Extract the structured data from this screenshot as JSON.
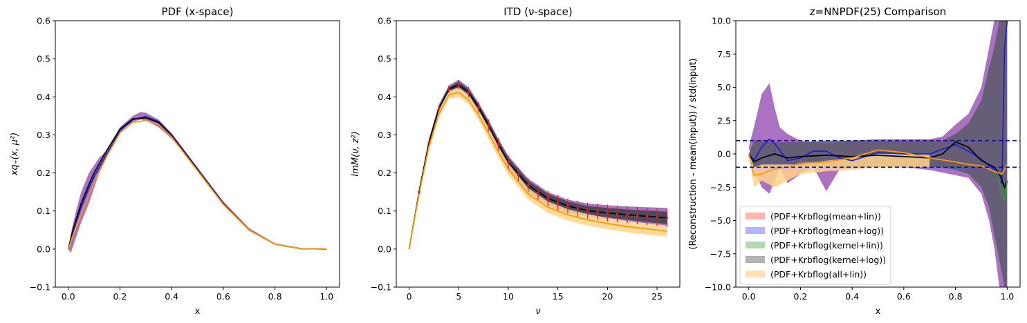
{
  "chart_data": [
    {
      "type": "line",
      "title": "PDF (x-space)",
      "xlabel": "x",
      "ylabel": "xq₊(x, μ²)",
      "xlim": [
        -0.05,
        1.05
      ],
      "ylim": [
        -0.1,
        0.6
      ],
      "xticks": [
        0.0,
        0.2,
        0.4,
        0.6,
        0.8,
        1.0
      ],
      "xtick_labels": [
        "0.0",
        "0.2",
        "0.4",
        "0.6",
        "0.8",
        "1.0"
      ],
      "yticks": [
        -0.1,
        0.0,
        0.1,
        0.2,
        0.3,
        0.4,
        0.5,
        0.6
      ],
      "ytick_labels": [
        "−0.1",
        "0.0",
        "0.1",
        "0.2",
        "0.3",
        "0.4",
        "0.5",
        "0.6"
      ],
      "colors": {
        "purple": "#9b59b6",
        "gray": "#3f3f4a",
        "blue": "#1f1fd6",
        "black": "#000000",
        "orange": "#ff9900",
        "lightorange": "#ffd38a"
      },
      "series": [
        {
          "color": "#9b59b6",
          "kind": "band",
          "x": [
            0,
            0.01,
            0.03,
            0.05,
            0.08,
            0.1,
            0.12,
            0.15,
            0.2,
            0.25,
            0.28,
            0.3,
            0.35,
            0.4,
            0.45,
            0.5,
            0.6,
            0.7,
            0.8,
            0.9,
            1.0
          ],
          "lower": [
            0.0,
            -0.01,
            0.03,
            0.07,
            0.12,
            0.16,
            0.2,
            0.25,
            0.31,
            0.335,
            0.34,
            0.338,
            0.32,
            0.29,
            0.25,
            0.205,
            0.12,
            0.05,
            0.012,
            0.0,
            0.0
          ],
          "upper": [
            0.0,
            0.04,
            0.1,
            0.15,
            0.2,
            0.22,
            0.24,
            0.26,
            0.32,
            0.35,
            0.36,
            0.358,
            0.34,
            0.305,
            0.26,
            0.215,
            0.125,
            0.055,
            0.015,
            0.002,
            0.0
          ]
        },
        {
          "color": "#1f1fd6",
          "kind": "line",
          "x": [
            0,
            0.02,
            0.05,
            0.08,
            0.1,
            0.15,
            0.2,
            0.25,
            0.3,
            0.35,
            0.4,
            0.5,
            0.6,
            0.7,
            0.8,
            0.9,
            1.0
          ],
          "y": [
            0.0,
            0.05,
            0.11,
            0.16,
            0.19,
            0.25,
            0.31,
            0.34,
            0.348,
            0.335,
            0.3,
            0.21,
            0.12,
            0.05,
            0.013,
            0.001,
            0.0
          ]
        },
        {
          "color": "#000000",
          "kind": "line",
          "x": [
            0,
            0.02,
            0.05,
            0.08,
            0.1,
            0.15,
            0.2,
            0.25,
            0.3,
            0.35,
            0.4,
            0.5,
            0.6,
            0.7,
            0.8,
            0.9,
            1.0
          ],
          "y": [
            0.0,
            0.055,
            0.12,
            0.17,
            0.2,
            0.26,
            0.315,
            0.342,
            0.345,
            0.332,
            0.298,
            0.208,
            0.118,
            0.05,
            0.013,
            0.001,
            0.0
          ]
        },
        {
          "color": "#ff9900",
          "kind": "line",
          "x": [
            0,
            0.02,
            0.05,
            0.08,
            0.1,
            0.15,
            0.2,
            0.25,
            0.3,
            0.35,
            0.4,
            0.5,
            0.6,
            0.7,
            0.8,
            0.9,
            1.0
          ],
          "y": [
            0.0,
            0.04,
            0.09,
            0.14,
            0.175,
            0.245,
            0.305,
            0.333,
            0.338,
            0.327,
            0.295,
            0.206,
            0.117,
            0.05,
            0.013,
            0.001,
            0.0
          ]
        }
      ]
    },
    {
      "type": "line",
      "title": "ITD (ν-space)",
      "xlabel": "ν",
      "ylabel": "ImM(ν, z²)",
      "xlim": [
        -1.3,
        27.3
      ],
      "ylim": [
        -0.1,
        0.6
      ],
      "xticks": [
        0,
        5,
        10,
        15,
        20,
        25
      ],
      "xtick_labels": [
        "0",
        "5",
        "10",
        "15",
        "20",
        "25"
      ],
      "yticks": [
        -0.1,
        0.0,
        0.1,
        0.2,
        0.3,
        0.4,
        0.5,
        0.6
      ],
      "ytick_labels": [
        "−0.1",
        "0.0",
        "0.1",
        "0.2",
        "0.3",
        "0.4",
        "0.5",
        "0.6"
      ],
      "series": [
        {
          "color": "#9b59b6",
          "kind": "band",
          "x": [
            0,
            1,
            2,
            3,
            4,
            5,
            6,
            7,
            8,
            9,
            10,
            12,
            14,
            16,
            18,
            20,
            22,
            24,
            26
          ],
          "lower": [
            0.0,
            0.14,
            0.27,
            0.36,
            0.41,
            0.42,
            0.4,
            0.36,
            0.31,
            0.26,
            0.21,
            0.15,
            0.115,
            0.095,
            0.085,
            0.078,
            0.072,
            0.066,
            0.06
          ],
          "upper": [
            0.0,
            0.16,
            0.29,
            0.38,
            0.43,
            0.445,
            0.425,
            0.385,
            0.34,
            0.29,
            0.245,
            0.185,
            0.15,
            0.13,
            0.12,
            0.115,
            0.112,
            0.11,
            0.108
          ]
        },
        {
          "color": "#3f3f4a",
          "kind": "band",
          "x": [
            0,
            1,
            2,
            3,
            4,
            5,
            6,
            7,
            8,
            9,
            10,
            12,
            14,
            16,
            18,
            20,
            22,
            24,
            26
          ],
          "lower": [
            0.0,
            0.145,
            0.275,
            0.365,
            0.415,
            0.425,
            0.405,
            0.365,
            0.315,
            0.265,
            0.215,
            0.155,
            0.12,
            0.1,
            0.09,
            0.083,
            0.077,
            0.071,
            0.066
          ],
          "upper": [
            0.0,
            0.155,
            0.285,
            0.375,
            0.425,
            0.44,
            0.42,
            0.38,
            0.335,
            0.285,
            0.24,
            0.18,
            0.145,
            0.125,
            0.113,
            0.108,
            0.104,
            0.101,
            0.098
          ]
        },
        {
          "color": "#ffd38a",
          "kind": "band",
          "x": [
            0,
            1,
            2,
            3,
            4,
            5,
            6,
            7,
            8,
            9,
            10,
            12,
            14,
            16,
            18,
            20,
            22,
            24,
            26
          ],
          "lower": [
            0.0,
            0.14,
            0.26,
            0.345,
            0.395,
            0.4,
            0.38,
            0.34,
            0.29,
            0.24,
            0.195,
            0.13,
            0.095,
            0.075,
            0.062,
            0.052,
            0.044,
            0.038,
            0.033
          ],
          "upper": [
            0.0,
            0.15,
            0.28,
            0.365,
            0.415,
            0.425,
            0.405,
            0.365,
            0.32,
            0.27,
            0.225,
            0.16,
            0.125,
            0.105,
            0.092,
            0.082,
            0.074,
            0.068,
            0.062
          ]
        },
        {
          "color": "#000000",
          "kind": "line",
          "x": [
            0,
            1,
            2,
            3,
            4,
            5,
            6,
            7,
            8,
            9,
            10,
            12,
            14,
            16,
            18,
            20,
            22,
            24,
            26
          ],
          "y": [
            0.0,
            0.15,
            0.28,
            0.37,
            0.42,
            0.432,
            0.412,
            0.372,
            0.325,
            0.275,
            0.228,
            0.168,
            0.133,
            0.113,
            0.101,
            0.095,
            0.09,
            0.086,
            0.082
          ]
        },
        {
          "color": "#ff9900",
          "kind": "line",
          "x": [
            0,
            1,
            2,
            3,
            4,
            5,
            6,
            7,
            8,
            9,
            10,
            12,
            14,
            16,
            18,
            20,
            22,
            24,
            26
          ],
          "y": [
            0.0,
            0.145,
            0.27,
            0.355,
            0.405,
            0.412,
            0.392,
            0.352,
            0.305,
            0.255,
            0.21,
            0.145,
            0.11,
            0.09,
            0.077,
            0.067,
            0.059,
            0.053,
            0.047
          ]
        },
        {
          "color": "#e31a1c",
          "kind": "errorbar",
          "x": [
            1,
            2,
            3,
            4,
            5,
            6,
            7,
            8,
            9,
            10,
            11,
            12,
            13,
            14,
            15,
            16,
            17,
            18,
            19,
            20,
            21,
            22,
            23,
            24,
            25,
            26
          ],
          "y": [
            0.15,
            0.28,
            0.37,
            0.42,
            0.432,
            0.412,
            0.372,
            0.325,
            0.275,
            0.228,
            0.195,
            0.168,
            0.148,
            0.133,
            0.122,
            0.113,
            0.106,
            0.101,
            0.098,
            0.095,
            0.092,
            0.09,
            0.088,
            0.086,
            0.084,
            0.082
          ],
          "err": [
            0.005,
            0.006,
            0.008,
            0.01,
            0.012,
            0.014,
            0.015,
            0.016,
            0.017,
            0.018,
            0.018,
            0.019,
            0.019,
            0.02,
            0.02,
            0.02,
            0.021,
            0.021,
            0.021,
            0.022,
            0.022,
            0.022,
            0.023,
            0.023,
            0.023,
            0.024
          ]
        }
      ]
    },
    {
      "type": "line",
      "title": "z=NNPDF(25) Comparison",
      "xlabel": "x",
      "ylabel": "(Reconstruction - mean(input)) / std(input)",
      "xlim": [
        -0.05,
        1.05
      ],
      "ylim": [
        -10.0,
        10.0
      ],
      "xticks": [
        0.0,
        0.2,
        0.4,
        0.6,
        0.8,
        1.0
      ],
      "xtick_labels": [
        "0.0",
        "0.2",
        "0.4",
        "0.6",
        "0.8",
        "1.0"
      ],
      "yticks": [
        -10.0,
        -7.5,
        -5.0,
        -2.5,
        0.0,
        2.5,
        5.0,
        7.5,
        10.0
      ],
      "ytick_labels": [
        "−10.0",
        "−7.5",
        "−5.0",
        "−2.5",
        "0.0",
        "2.5",
        "5.0",
        "7.5",
        "10.0"
      ],
      "hlines": [
        {
          "y": 1.0,
          "color": "#0000ff",
          "style": "dashed"
        },
        {
          "y": -1.0,
          "color": "#0000ff",
          "style": "dashed"
        }
      ],
      "legend": {
        "placement": "lower-left",
        "entries": [
          {
            "label": "(PDF+Krbflog(mean+lin))",
            "color": "#ffb3b3"
          },
          {
            "label": "(PDF+Krbflog(mean+log))",
            "color": "#b3b3ff"
          },
          {
            "label": "(PDF+Krbflog(kernel+lin))",
            "color": "#b3d9b3"
          },
          {
            "label": "(PDF+Krbflog(kernel+log))",
            "color": "#b3b3b3"
          },
          {
            "label": "(PDF+Krbflog(all+lin))",
            "color": "#ffe0b3"
          }
        ]
      },
      "series": [
        {
          "color": "#9b59b6",
          "kind": "band",
          "x": [
            0,
            0.02,
            0.05,
            0.08,
            0.1,
            0.12,
            0.15,
            0.2,
            0.25,
            0.3,
            0.35,
            0.4,
            0.5,
            0.6,
            0.7,
            0.75,
            0.8,
            0.85,
            0.9,
            0.93,
            0.95,
            0.97,
            0.99,
            1.0
          ],
          "lower": [
            0.5,
            -1.2,
            -2.5,
            -3.0,
            -2.0,
            -1.0,
            -2.2,
            -1.5,
            -1.0,
            -2.8,
            -1.2,
            -1.0,
            -1.0,
            -1.0,
            -1.2,
            -1.4,
            -1.6,
            -1.8,
            -3.0,
            -5.0,
            -7.0,
            -10.0,
            -10.0,
            -10.0
          ],
          "upper": [
            0.5,
            2.0,
            4.5,
            5.3,
            3.5,
            2.0,
            1.5,
            1.0,
            0.9,
            0.8,
            0.9,
            1.0,
            1.1,
            1.1,
            1.1,
            1.3,
            2.2,
            3.0,
            5.0,
            8.0,
            10.0,
            10.0,
            10.0,
            10.0
          ]
        },
        {
          "color": "#5b5a6a",
          "kind": "band",
          "x": [
            0,
            0.02,
            0.05,
            0.1,
            0.2,
            0.3,
            0.4,
            0.5,
            0.6,
            0.7,
            0.75,
            0.8,
            0.85,
            0.9,
            0.93,
            0.95,
            0.97,
            0.99,
            1.0
          ],
          "lower": [
            0.0,
            -1.0,
            -1.0,
            -0.9,
            -0.9,
            -1.0,
            -1.0,
            -1.0,
            -1.0,
            -1.0,
            -1.0,
            -1.2,
            -1.5,
            -2.5,
            -4.0,
            -6.0,
            -8.0,
            -10.0,
            -10.0
          ],
          "upper": [
            0.0,
            1.0,
            1.0,
            0.9,
            0.9,
            1.0,
            1.0,
            1.0,
            1.0,
            1.0,
            1.0,
            1.5,
            2.3,
            4.0,
            6.5,
            8.0,
            10.0,
            10.0,
            10.0
          ]
        },
        {
          "color": "#ffd38a",
          "kind": "band",
          "x": [
            0,
            0.02,
            0.05,
            0.1,
            0.15,
            0.2,
            0.3,
            0.4,
            0.5,
            0.6,
            0.7
          ],
          "lower": [
            0.0,
            -2.5,
            -2.0,
            -2.5,
            -2.0,
            -1.5,
            -1.3,
            -1.2,
            -1.0,
            -1.0,
            -1.0
          ],
          "upper": [
            0.0,
            -1.0,
            -0.8,
            -0.8,
            -0.8,
            -0.8,
            -0.5,
            -0.3,
            0.0,
            0.0,
            0.0
          ]
        },
        {
          "color": "#1f1fd6",
          "kind": "line",
          "x": [
            0,
            0.02,
            0.05,
            0.08,
            0.1,
            0.15,
            0.2,
            0.25,
            0.3,
            0.35,
            0.4,
            0.5,
            0.6,
            0.7,
            0.8,
            0.85,
            0.9,
            0.95,
            0.97,
            0.98,
            0.99,
            1.0
          ],
          "y": [
            0.0,
            -0.5,
            0.5,
            1.1,
            0.8,
            -0.5,
            -0.3,
            0.2,
            0.2,
            -0.3,
            -0.5,
            0.1,
            0.0,
            0.0,
            0.7,
            0.2,
            -0.4,
            -1.2,
            -2.0,
            -2.2,
            8.0,
            10.0
          ]
        },
        {
          "color": "#000000",
          "kind": "line",
          "x": [
            0,
            0.02,
            0.05,
            0.1,
            0.15,
            0.2,
            0.3,
            0.4,
            0.5,
            0.6,
            0.7,
            0.75,
            0.8,
            0.85,
            0.9,
            0.95,
            0.97,
            0.99,
            1.0
          ],
          "y": [
            0.0,
            -0.6,
            -0.3,
            0.0,
            -0.3,
            -0.2,
            -0.1,
            -0.2,
            -0.1,
            -0.2,
            -0.3,
            0.0,
            0.9,
            0.5,
            -0.5,
            -1.0,
            -1.5,
            -2.5,
            -2.0
          ]
        },
        {
          "color": "#2ca02c",
          "kind": "line",
          "x": [
            0.95,
            0.97,
            0.98,
            0.99,
            1.0
          ],
          "y": [
            -1.3,
            -2.0,
            -3.0,
            -3.5,
            -2.0
          ]
        },
        {
          "color": "#ff9900",
          "kind": "line",
          "x": [
            0,
            0.02,
            0.05,
            0.1,
            0.15,
            0.2,
            0.3,
            0.4,
            0.5,
            0.55,
            0.6,
            0.7,
            0.8,
            0.85,
            0.9,
            0.95,
            0.98,
            1.0
          ],
          "y": [
            0.0,
            -1.6,
            -1.5,
            -1.1,
            -1.0,
            -0.7,
            -0.6,
            -0.3,
            0.3,
            0.2,
            0.1,
            -0.3,
            -0.6,
            -0.8,
            -0.9,
            -1.3,
            -1.5,
            -0.8
          ]
        }
      ]
    }
  ]
}
